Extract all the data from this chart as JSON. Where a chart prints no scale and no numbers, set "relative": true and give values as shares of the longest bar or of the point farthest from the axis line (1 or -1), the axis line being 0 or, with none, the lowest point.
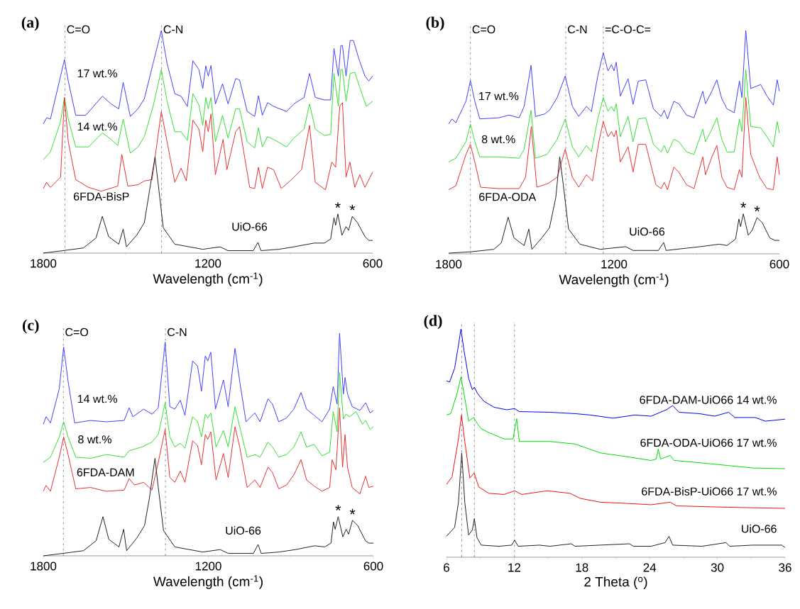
{
  "chart_data": [
    {
      "type": "line",
      "title": "(a)",
      "xlabel": "Wavelength (cm$^{-1}$)",
      "xlim": [
        1800,
        600
      ],
      "xticks": [
        1800,
        1200,
        600
      ],
      "relative": true,
      "legend": false,
      "line_style": "solid",
      "ref_lines": [
        {
          "axis": "x",
          "value": 1721,
          "label": "C=O"
        },
        {
          "axis": "x",
          "value": 1369,
          "label": "C-N"
        }
      ],
      "annotations": [
        {
          "text": "*",
          "x": 727,
          "y": 0.176
        },
        {
          "text": "*",
          "x": 674,
          "y": 0.165
        }
      ],
      "series": [
        {
          "name": "17 wt.%",
          "color": "#4040ff",
          "x": [
            1800,
            1788,
            1774,
            1737,
            1723,
            1709,
            1682,
            1645,
            1585,
            1553,
            1525,
            1509,
            1483,
            1455,
            1432,
            1400,
            1370,
            1349,
            1321,
            1298,
            1275,
            1255,
            1233,
            1219,
            1208,
            1199,
            1189,
            1173,
            1147,
            1127,
            1099,
            1085,
            1057,
            1030,
            1016,
            1002,
            983,
            961,
            914,
            887,
            850,
            830,
            809,
            776,
            753,
            741,
            725,
            716,
            710,
            697,
            682,
            670,
            651,
            628,
            614,
            600
          ],
          "values": [
            0.58,
            0.608,
            0.602,
            0.795,
            0.869,
            0.773,
            0.619,
            0.619,
            0.705,
            0.67,
            0.648,
            0.767,
            0.614,
            0.648,
            0.693,
            0.852,
            1.0,
            0.852,
            0.716,
            0.705,
            0.659,
            0.864,
            0.824,
            0.739,
            0.841,
            0.795,
            0.843,
            0.67,
            0.761,
            0.67,
            0.784,
            0.778,
            0.636,
            0.614,
            0.707,
            0.619,
            0.676,
            0.659,
            0.636,
            0.67,
            0.699,
            0.807,
            0.699,
            0.688,
            0.688,
            0.92,
            0.795,
            0.932,
            0.932,
            0.795,
            0.955,
            0.955,
            0.875,
            0.795,
            0.773,
            0.795
          ]
        },
        {
          "name": "14 wt.%",
          "color": "#33e033",
          "x": [
            1800,
            1774,
            1737,
            1723,
            1709,
            1682,
            1635,
            1585,
            1553,
            1529,
            1509,
            1483,
            1455,
            1432,
            1400,
            1370,
            1349,
            1321,
            1298,
            1275,
            1255,
            1233,
            1219,
            1208,
            1199,
            1189,
            1173,
            1147,
            1127,
            1099,
            1085,
            1057,
            1030,
            1016,
            1002,
            983,
            961,
            914,
            887,
            850,
            830,
            809,
            776,
            753,
            741,
            725,
            716,
            710,
            697,
            682,
            665,
            647,
            623,
            600
          ],
          "values": [
            0.42,
            0.455,
            0.591,
            0.699,
            0.602,
            0.477,
            0.477,
            0.54,
            0.511,
            0.483,
            0.602,
            0.449,
            0.477,
            0.523,
            0.659,
            0.824,
            0.682,
            0.545,
            0.545,
            0.506,
            0.716,
            0.665,
            0.574,
            0.699,
            0.648,
            0.699,
            0.5,
            0.619,
            0.517,
            0.648,
            0.648,
            0.5,
            0.472,
            0.563,
            0.477,
            0.523,
            0.511,
            0.477,
            0.517,
            0.557,
            0.67,
            0.557,
            0.528,
            0.534,
            0.807,
            0.659,
            0.824,
            0.824,
            0.682,
            0.807,
            0.813,
            0.744,
            0.659,
            0.682
          ]
        },
        {
          "name": "6FDA-BisP",
          "color": "#e83030",
          "x": [
            1800,
            1788,
            1774,
            1737,
            1723,
            1709,
            1682,
            1635,
            1589,
            1529,
            1514,
            1492,
            1455,
            1432,
            1404,
            1370,
            1349,
            1321,
            1298,
            1279,
            1255,
            1233,
            1219,
            1208,
            1199,
            1189,
            1173,
            1145,
            1131,
            1099,
            1085,
            1048,
            1030,
            1016,
            1002,
            983,
            961,
            933,
            896,
            859,
            830,
            809,
            772,
            749,
            735,
            720,
            710,
            697,
            683,
            665,
            647,
            628,
            600
          ],
          "values": [
            0.29,
            0.318,
            0.295,
            0.341,
            0.699,
            0.5,
            0.33,
            0.295,
            0.278,
            0.301,
            0.443,
            0.301,
            0.307,
            0.324,
            0.33,
            0.636,
            0.5,
            0.318,
            0.381,
            0.324,
            0.597,
            0.557,
            0.455,
            0.597,
            0.545,
            0.625,
            0.352,
            0.511,
            0.375,
            0.545,
            0.568,
            0.295,
            0.29,
            0.386,
            0.29,
            0.386,
            0.375,
            0.29,
            0.33,
            0.375,
            0.574,
            0.318,
            0.284,
            0.409,
            0.386,
            0.659,
            0.676,
            0.341,
            0.409,
            0.295,
            0.352,
            0.295,
            0.364
          ]
        },
        {
          "name": "UiO-66",
          "color": "#222222",
          "x": [
            1800,
            1728,
            1654,
            1608,
            1585,
            1562,
            1525,
            1509,
            1497,
            1460,
            1432,
            1414,
            1393,
            1381,
            1363,
            1321,
            1219,
            1156,
            1127,
            1035,
            1018,
            1007,
            942,
            887,
            813,
            776,
            753,
            741,
            735,
            727,
            712,
            697,
            688,
            674,
            655,
            628,
            614,
            600
          ],
          "values": [
            0.0,
            0.011,
            0.023,
            0.068,
            0.165,
            0.074,
            0.04,
            0.108,
            0.028,
            0.08,
            0.136,
            0.273,
            0.432,
            0.307,
            0.114,
            0.04,
            0.017,
            0.028,
            0.011,
            0.011,
            0.048,
            0.011,
            0.017,
            0.028,
            0.045,
            0.045,
            0.063,
            0.159,
            0.125,
            0.176,
            0.08,
            0.119,
            0.102,
            0.165,
            0.136,
            0.074,
            0.057,
            0.057
          ]
        }
      ]
    },
    {
      "type": "line",
      "title": "(b)",
      "xlabel": "Wavelength (cm$^{-1}$)",
      "xlim": [
        1800,
        600
      ],
      "xticks": [
        1800,
        1200,
        600
      ],
      "relative": true,
      "legend": false,
      "line_style": "solid",
      "ref_lines": [
        {
          "axis": "x",
          "value": 1721,
          "label": "C=O"
        },
        {
          "axis": "x",
          "value": 1375,
          "label": "C-N"
        },
        {
          "axis": "x",
          "value": 1239,
          "label": "=C-O-C="
        }
      ],
      "annotations": [
        {
          "text": "*",
          "x": 731,
          "y": 0.179
        },
        {
          "text": "*",
          "x": 681,
          "y": 0.162
        }
      ],
      "series": [
        {
          "name": "17 wt.%",
          "color": "#4040ff",
          "x": [
            1800,
            1788,
            1774,
            1737,
            1721,
            1705,
            1687,
            1618,
            1581,
            1544,
            1526,
            1501,
            1485,
            1452,
            1434,
            1406,
            1377,
            1351,
            1328,
            1300,
            1282,
            1259,
            1239,
            1222,
            1209,
            1200,
            1192,
            1177,
            1149,
            1131,
            1112,
            1085,
            1057,
            1029,
            1018,
            1006,
            983,
            965,
            937,
            910,
            878,
            868,
            845,
            827,
            809,
            790,
            764,
            745,
            736,
            722,
            704,
            668,
            645,
            622,
            608,
            600
          ],
          "values": [
            0.581,
            0.604,
            0.587,
            0.683,
            0.776,
            0.683,
            0.604,
            0.609,
            0.621,
            0.609,
            0.66,
            0.844,
            0.615,
            0.626,
            0.643,
            0.7,
            0.796,
            0.66,
            0.615,
            0.66,
            0.637,
            0.796,
            0.9,
            0.819,
            0.847,
            0.819,
            0.858,
            0.706,
            0.784,
            0.669,
            0.773,
            0.779,
            0.649,
            0.615,
            0.643,
            0.604,
            0.683,
            0.672,
            0.621,
            0.609,
            0.728,
            0.672,
            0.728,
            0.779,
            0.694,
            0.649,
            0.632,
            0.774,
            0.7,
            1.0,
            0.74,
            0.758,
            0.706,
            0.666,
            0.779,
            0.728
          ]
        },
        {
          "name": "8 wt.%",
          "color": "#33e033",
          "x": [
            1800,
            1774,
            1737,
            1721,
            1705,
            1687,
            1618,
            1544,
            1526,
            1501,
            1485,
            1443,
            1406,
            1377,
            1351,
            1328,
            1300,
            1282,
            1259,
            1239,
            1222,
            1209,
            1200,
            1192,
            1177,
            1149,
            1131,
            1112,
            1085,
            1057,
            1029,
            1018,
            1006,
            983,
            965,
            937,
            910,
            878,
            868,
            845,
            827,
            809,
            790,
            764,
            745,
            736,
            722,
            704,
            668,
            645,
            622,
            608,
            600
          ],
          "values": [
            0.411,
            0.428,
            0.502,
            0.581,
            0.502,
            0.434,
            0.434,
            0.428,
            0.468,
            0.643,
            0.428,
            0.445,
            0.513,
            0.604,
            0.479,
            0.434,
            0.485,
            0.457,
            0.604,
            0.7,
            0.638,
            0.66,
            0.638,
            0.672,
            0.524,
            0.615,
            0.502,
            0.604,
            0.609,
            0.49,
            0.456,
            0.485,
            0.451,
            0.513,
            0.502,
            0.456,
            0.445,
            0.558,
            0.502,
            0.558,
            0.609,
            0.513,
            0.456,
            0.456,
            0.604,
            0.547,
            0.824,
            0.57,
            0.564,
            0.524,
            0.479,
            0.592,
            0.541
          ]
        },
        {
          "name": "6FDA-ODA",
          "color": "#e83030",
          "x": [
            1800,
            1774,
            1737,
            1721,
            1705,
            1684,
            1618,
            1544,
            1521,
            1500,
            1480,
            1439,
            1406,
            1377,
            1351,
            1328,
            1300,
            1278,
            1255,
            1239,
            1222,
            1209,
            1200,
            1192,
            1177,
            1149,
            1131,
            1112,
            1085,
            1048,
            1029,
            1018,
            1006,
            983,
            965,
            937,
            910,
            878,
            868,
            845,
            827,
            809,
            790,
            764,
            745,
            736,
            722,
            704,
            672,
            645,
            622,
            608,
            600
          ],
          "values": [
            0.287,
            0.304,
            0.445,
            0.49,
            0.411,
            0.298,
            0.292,
            0.292,
            0.343,
            0.57,
            0.298,
            0.315,
            0.343,
            0.468,
            0.343,
            0.298,
            0.354,
            0.326,
            0.502,
            0.592,
            0.524,
            0.547,
            0.524,
            0.553,
            0.411,
            0.479,
            0.366,
            0.49,
            0.49,
            0.309,
            0.292,
            0.32,
            0.287,
            0.388,
            0.366,
            0.309,
            0.292,
            0.434,
            0.354,
            0.434,
            0.485,
            0.343,
            0.298,
            0.287,
            0.377,
            0.343,
            0.7,
            0.445,
            0.343,
            0.292,
            0.287,
            0.434,
            0.354
          ]
        },
        {
          "name": "UiO-66",
          "color": "#222222",
          "x": [
            1800,
            1719,
            1636,
            1609,
            1584,
            1563,
            1526,
            1509,
            1498,
            1462,
            1434,
            1411,
            1397,
            1384,
            1365,
            1324,
            1250,
            1158,
            1131,
            1039,
            1020,
            1011,
            887,
            818,
            790,
            759,
            747,
            741,
            731,
            713,
            699,
            681,
            662,
            635,
            616,
            600
          ],
          "values": [
            0.003,
            0.009,
            0.02,
            0.049,
            0.164,
            0.071,
            0.037,
            0.111,
            0.02,
            0.071,
            0.117,
            0.253,
            0.434,
            0.309,
            0.111,
            0.043,
            0.02,
            0.032,
            0.015,
            0.015,
            0.051,
            0.015,
            0.032,
            0.043,
            0.037,
            0.066,
            0.156,
            0.122,
            0.179,
            0.083,
            0.105,
            0.162,
            0.139,
            0.071,
            0.06,
            0.06
          ]
        }
      ]
    },
    {
      "type": "line",
      "title": "(c)",
      "xlabel": "Wavelength (cm$^{-1}$)",
      "xlim": [
        1800,
        600
      ],
      "xticks": [
        1800,
        1200,
        600
      ],
      "relative": true,
      "legend": false,
      "line_style": "solid",
      "ref_lines": [
        {
          "axis": "x",
          "value": 1727,
          "label": "C=O"
        },
        {
          "axis": "x",
          "value": 1356,
          "label": "C-N"
        }
      ],
      "annotations": [
        {
          "text": "*",
          "x": 728,
          "y": 0.176
        },
        {
          "text": "*",
          "x": 676,
          "y": 0.159
        }
      ],
      "series": [
        {
          "name": "14 wt.%",
          "color": "#4040ff",
          "x": [
            1800,
            1790,
            1774,
            1742,
            1726,
            1710,
            1686,
            1628,
            1572,
            1506,
            1488,
            1474,
            1435,
            1405,
            1382,
            1357,
            1340,
            1322,
            1302,
            1285,
            1257,
            1239,
            1225,
            1211,
            1202,
            1191,
            1174,
            1145,
            1128,
            1103,
            1086,
            1063,
            1031,
            1012,
            983,
            967,
            944,
            916,
            889,
            863,
            843,
            815,
            787,
            759,
            746,
            732,
            723,
            709,
            703,
            694,
            677,
            649,
            628,
            612,
            600
          ],
          "values": [
            0.591,
            0.625,
            0.597,
            0.75,
            0.938,
            0.784,
            0.597,
            0.608,
            0.602,
            0.608,
            0.665,
            0.625,
            0.659,
            0.636,
            0.665,
            0.96,
            0.67,
            0.659,
            0.699,
            0.631,
            0.875,
            0.852,
            0.739,
            0.898,
            0.875,
            0.915,
            0.659,
            0.79,
            0.67,
            0.932,
            0.784,
            0.602,
            0.642,
            0.602,
            0.705,
            0.682,
            0.602,
            0.619,
            0.659,
            0.733,
            0.659,
            0.631,
            0.602,
            0.659,
            0.761,
            0.682,
            1.0,
            0.727,
            0.801,
            0.727,
            0.67,
            0.653,
            0.688,
            0.642,
            0.653
          ]
        },
        {
          "name": "8 wt.%",
          "color": "#33e033",
          "x": [
            1800,
            1774,
            1742,
            1726,
            1710,
            1682,
            1628,
            1572,
            1506,
            1488,
            1441,
            1405,
            1382,
            1357,
            1340,
            1322,
            1302,
            1285,
            1257,
            1239,
            1225,
            1211,
            1202,
            1191,
            1172,
            1145,
            1128,
            1103,
            1086,
            1059,
            1031,
            1012,
            983,
            967,
            944,
            916,
            889,
            863,
            843,
            815,
            787,
            759,
            746,
            732,
            723,
            709,
            700,
            686,
            663,
            640,
            628,
            612,
            600
          ],
          "values": [
            0.42,
            0.443,
            0.534,
            0.602,
            0.534,
            0.443,
            0.438,
            0.455,
            0.443,
            0.472,
            0.489,
            0.511,
            0.545,
            0.688,
            0.534,
            0.489,
            0.506,
            0.483,
            0.625,
            0.602,
            0.534,
            0.636,
            0.619,
            0.642,
            0.489,
            0.563,
            0.489,
            0.67,
            0.58,
            0.443,
            0.455,
            0.443,
            0.511,
            0.489,
            0.443,
            0.455,
            0.489,
            0.557,
            0.489,
            0.5,
            0.449,
            0.466,
            0.648,
            0.557,
            0.824,
            0.614,
            0.636,
            0.625,
            0.648,
            0.591,
            0.608,
            0.568,
            0.58
          ]
        },
        {
          "name": "6FDA-DAM",
          "color": "#e83030",
          "x": [
            1800,
            1790,
            1774,
            1742,
            1726,
            1710,
            1682,
            1628,
            1572,
            1506,
            1488,
            1469,
            1435,
            1405,
            1382,
            1357,
            1340,
            1322,
            1302,
            1285,
            1257,
            1239,
            1225,
            1211,
            1202,
            1191,
            1172,
            1145,
            1128,
            1103,
            1086,
            1059,
            1031,
            1012,
            983,
            967,
            944,
            916,
            889,
            863,
            843,
            815,
            787,
            759,
            750,
            736,
            723,
            712,
            703,
            694,
            677,
            649,
            628,
            617,
            600
          ],
          "values": [
            0.29,
            0.316,
            0.29,
            0.443,
            0.534,
            0.455,
            0.301,
            0.307,
            0.29,
            0.295,
            0.347,
            0.318,
            0.33,
            0.295,
            0.42,
            0.568,
            0.352,
            0.33,
            0.381,
            0.33,
            0.517,
            0.494,
            0.409,
            0.545,
            0.523,
            0.557,
            0.341,
            0.46,
            0.352,
            0.58,
            0.489,
            0.307,
            0.341,
            0.307,
            0.398,
            0.375,
            0.301,
            0.318,
            0.364,
            0.432,
            0.341,
            0.313,
            0.29,
            0.307,
            0.432,
            0.386,
            0.665,
            0.398,
            0.545,
            0.398,
            0.307,
            0.278,
            0.358,
            0.307,
            0.313
          ]
        },
        {
          "name": "UiO-66",
          "color": "#222222",
          "x": [
            1800,
            1728,
            1654,
            1608,
            1583,
            1562,
            1525,
            1508,
            1497,
            1460,
            1432,
            1414,
            1394,
            1382,
            1363,
            1322,
            1220,
            1157,
            1128,
            1036,
            1019,
            1008,
            943,
            883,
            814,
            777,
            754,
            745,
            739,
            728,
            711,
            699,
            690,
            676,
            657,
            629,
            616,
            600
          ],
          "values": [
            0.0,
            0.011,
            0.023,
            0.068,
            0.176,
            0.074,
            0.04,
            0.119,
            0.023,
            0.08,
            0.136,
            0.261,
            0.438,
            0.307,
            0.114,
            0.04,
            0.017,
            0.028,
            0.011,
            0.011,
            0.051,
            0.011,
            0.017,
            0.028,
            0.045,
            0.04,
            0.057,
            0.153,
            0.119,
            0.176,
            0.085,
            0.119,
            0.097,
            0.159,
            0.136,
            0.068,
            0.057,
            0.057
          ]
        }
      ]
    },
    {
      "type": "line",
      "title": "(d)",
      "xlabel": "2 Theta ($^{o}$)",
      "xlim": [
        6,
        36
      ],
      "xticks": [
        6,
        12,
        18,
        24,
        30,
        36
      ],
      "relative": true,
      "legend": false,
      "line_style": "solid",
      "ref_lines": [
        {
          "axis": "x",
          "value": 7.35
        },
        {
          "axis": "x",
          "value": 8.47
        },
        {
          "axis": "x",
          "value": 12.02
        }
      ],
      "series": [
        {
          "name": "6FDA-DAM-UiO66 14 wt.%",
          "color": "#0000ee",
          "x": [
            6.0,
            6.27,
            6.72,
            7.06,
            7.28,
            7.55,
            7.96,
            8.29,
            8.47,
            8.74,
            9.3,
            10.2,
            11.33,
            12.04,
            12.45,
            15.15,
            17.39,
            18.74,
            20.76,
            22.67,
            24.13,
            25.48,
            26.04,
            26.61,
            28.39,
            29.75,
            30.99,
            31.55,
            33.35,
            34.25,
            36.0
          ],
          "values": [
            0.773,
            0.767,
            0.828,
            0.928,
            1.0,
            0.906,
            0.784,
            0.734,
            0.745,
            0.718,
            0.684,
            0.657,
            0.646,
            0.651,
            0.638,
            0.635,
            0.629,
            0.623,
            0.609,
            0.623,
            0.618,
            0.646,
            0.664,
            0.635,
            0.629,
            0.618,
            0.635,
            0.612,
            0.612,
            0.596,
            0.605
          ]
        },
        {
          "name": "6FDA-ODA-UiO66 17 wt.%",
          "color": "#00dd00",
          "x": [
            6.0,
            6.38,
            6.94,
            7.28,
            7.55,
            7.96,
            8.4,
            8.74,
            9.08,
            9.75,
            11.1,
            11.89,
            12.22,
            12.45,
            15.15,
            17.39,
            19.64,
            21.89,
            24.13,
            24.58,
            24.76,
            24.97,
            25.82,
            26.16,
            28.63,
            30.88,
            33.12,
            36.0
          ],
          "values": [
            0.623,
            0.629,
            0.718,
            0.79,
            0.718,
            0.596,
            0.612,
            0.585,
            0.563,
            0.546,
            0.518,
            0.518,
            0.607,
            0.507,
            0.507,
            0.496,
            0.457,
            0.441,
            0.424,
            0.43,
            0.474,
            0.43,
            0.446,
            0.424,
            0.413,
            0.402,
            0.391,
            0.388
          ]
        },
        {
          "name": "6FDA-BisP-UiO66 17 wt.%",
          "color": "#ee1111",
          "x": [
            6.0,
            6.49,
            7.06,
            7.33,
            7.62,
            8.07,
            8.45,
            8.85,
            9.75,
            11.1,
            12.04,
            12.67,
            14.92,
            16.94,
            17.84,
            19.64,
            21.89,
            24.13,
            25.82,
            26.38,
            30.88,
            36.0
          ],
          "values": [
            0.319,
            0.352,
            0.518,
            0.623,
            0.507,
            0.347,
            0.369,
            0.308,
            0.28,
            0.275,
            0.291,
            0.275,
            0.291,
            0.28,
            0.258,
            0.241,
            0.236,
            0.23,
            0.241,
            0.225,
            0.219,
            0.214
          ]
        },
        {
          "name": "UiO-66",
          "color": "#222222",
          "x": [
            6.0,
            6.72,
            7.06,
            7.35,
            7.62,
            7.96,
            8.29,
            8.47,
            8.7,
            9.08,
            10.65,
            11.78,
            12.04,
            12.34,
            14.25,
            15.15,
            17.06,
            17.39,
            22.22,
            22.56,
            24.13,
            25.37,
            25.71,
            26.04,
            28.63,
            30.76,
            31.1,
            33.12,
            35.71,
            36.0
          ],
          "values": [
            0.092,
            0.131,
            0.241,
            0.457,
            0.241,
            0.097,
            0.12,
            0.169,
            0.086,
            0.053,
            0.048,
            0.053,
            0.075,
            0.048,
            0.053,
            0.048,
            0.059,
            0.048,
            0.059,
            0.048,
            0.048,
            0.064,
            0.092,
            0.053,
            0.048,
            0.064,
            0.048,
            0.053,
            0.053,
            0.042
          ]
        }
      ]
    }
  ]
}
